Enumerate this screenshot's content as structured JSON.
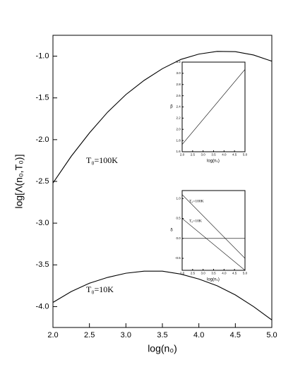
{
  "chart_data": [
    {
      "type": "line",
      "xlabel": "log(n₀)",
      "ylabel": "log[Λ(n₀,T₀)]",
      "x": [
        2.0,
        2.25,
        2.5,
        2.75,
        3.0,
        3.25,
        3.5,
        3.75,
        4.0,
        4.25,
        4.5,
        4.75,
        5.0
      ],
      "xlim": [
        2,
        5
      ],
      "ylim": [
        -4.25,
        -0.75
      ],
      "xticks": [
        {
          "value": 2,
          "label": "2.0"
        },
        2.5,
        {
          "value": 3,
          "label": "3.0"
        },
        3.5,
        {
          "value": 4,
          "label": "4.0"
        },
        4.5,
        {
          "value": 5,
          "label": "5.0"
        }
      ],
      "yticks": [
        {
          "value": -4,
          "label": "-4.0"
        },
        -3.5,
        {
          "value": -3,
          "label": "-3.0"
        },
        -2.5,
        {
          "value": -2,
          "label": "-2.0"
        },
        -1.5,
        {
          "value": -1,
          "label": "-1.0"
        }
      ],
      "series": [
        {
          "color": "#000000",
          "values": [
            -2.52,
            -2.2,
            -1.92,
            -1.67,
            -1.46,
            -1.29,
            -1.15,
            -1.04,
            -0.975,
            -0.943,
            -0.946,
            -0.986,
            -1.06
          ]
        },
        {
          "color": "#000000",
          "values": [
            -3.95,
            -3.82,
            -3.72,
            -3.65,
            -3.6,
            -3.575,
            -3.575,
            -3.61,
            -3.67,
            -3.75,
            -3.86,
            -4.0,
            -4.16
          ]
        }
      ],
      "annotations": [
        "T₀=100K",
        "T₀=10K"
      ]
    },
    {
      "type": "line",
      "xlabel": "log(n₀)",
      "ylabel": "β",
      "x": [
        2,
        5
      ],
      "xlim": [
        2,
        5
      ],
      "ylim": [
        1.6,
        3.2
      ],
      "xticks": [
        {
          "value": 2,
          "label": "2.0"
        },
        2.5,
        {
          "value": 3,
          "label": "3.0"
        },
        3.5,
        {
          "value": 4,
          "label": "4.0"
        },
        4.5,
        {
          "value": 5,
          "label": "5.0"
        }
      ],
      "yticks": [
        1.6,
        1.8,
        {
          "value": 2,
          "label": "2.0"
        },
        2.2,
        2.4,
        2.6,
        2.8,
        {
          "value": 3,
          "label": "3.0"
        },
        3.2
      ],
      "series": [
        {
          "color": "#000000",
          "values": [
            1.73,
            3.07
          ]
        }
      ],
      "annotations": []
    },
    {
      "type": "line",
      "xlabel": "log(n₀)",
      "ylabel": "δ",
      "x": [
        2,
        5
      ],
      "xlim": [
        2,
        5
      ],
      "ylim": [
        -0.8,
        1.2
      ],
      "xticks": [
        {
          "value": 2,
          "label": "2.0"
        },
        2.5,
        {
          "value": 3,
          "label": "3.0"
        },
        3.5,
        {
          "value": 4,
          "label": "4.0"
        },
        4.5,
        {
          "value": 5,
          "label": "5.0"
        }
      ],
      "yticks": [
        -0.5,
        {
          "value": 0,
          "label": "0.0"
        },
        0.5,
        {
          "value": 1,
          "label": "1.0"
        }
      ],
      "series": [
        {
          "color": "#000000",
          "values": [
            1.1,
            -0.5
          ]
        },
        {
          "color": "#000000",
          "values": [
            0.5,
            -0.8
          ]
        },
        {
          "color": "#000000",
          "values": [
            0,
            0
          ]
        }
      ],
      "annotations": [
        "T₀=100K",
        "T₀=10K"
      ]
    }
  ]
}
